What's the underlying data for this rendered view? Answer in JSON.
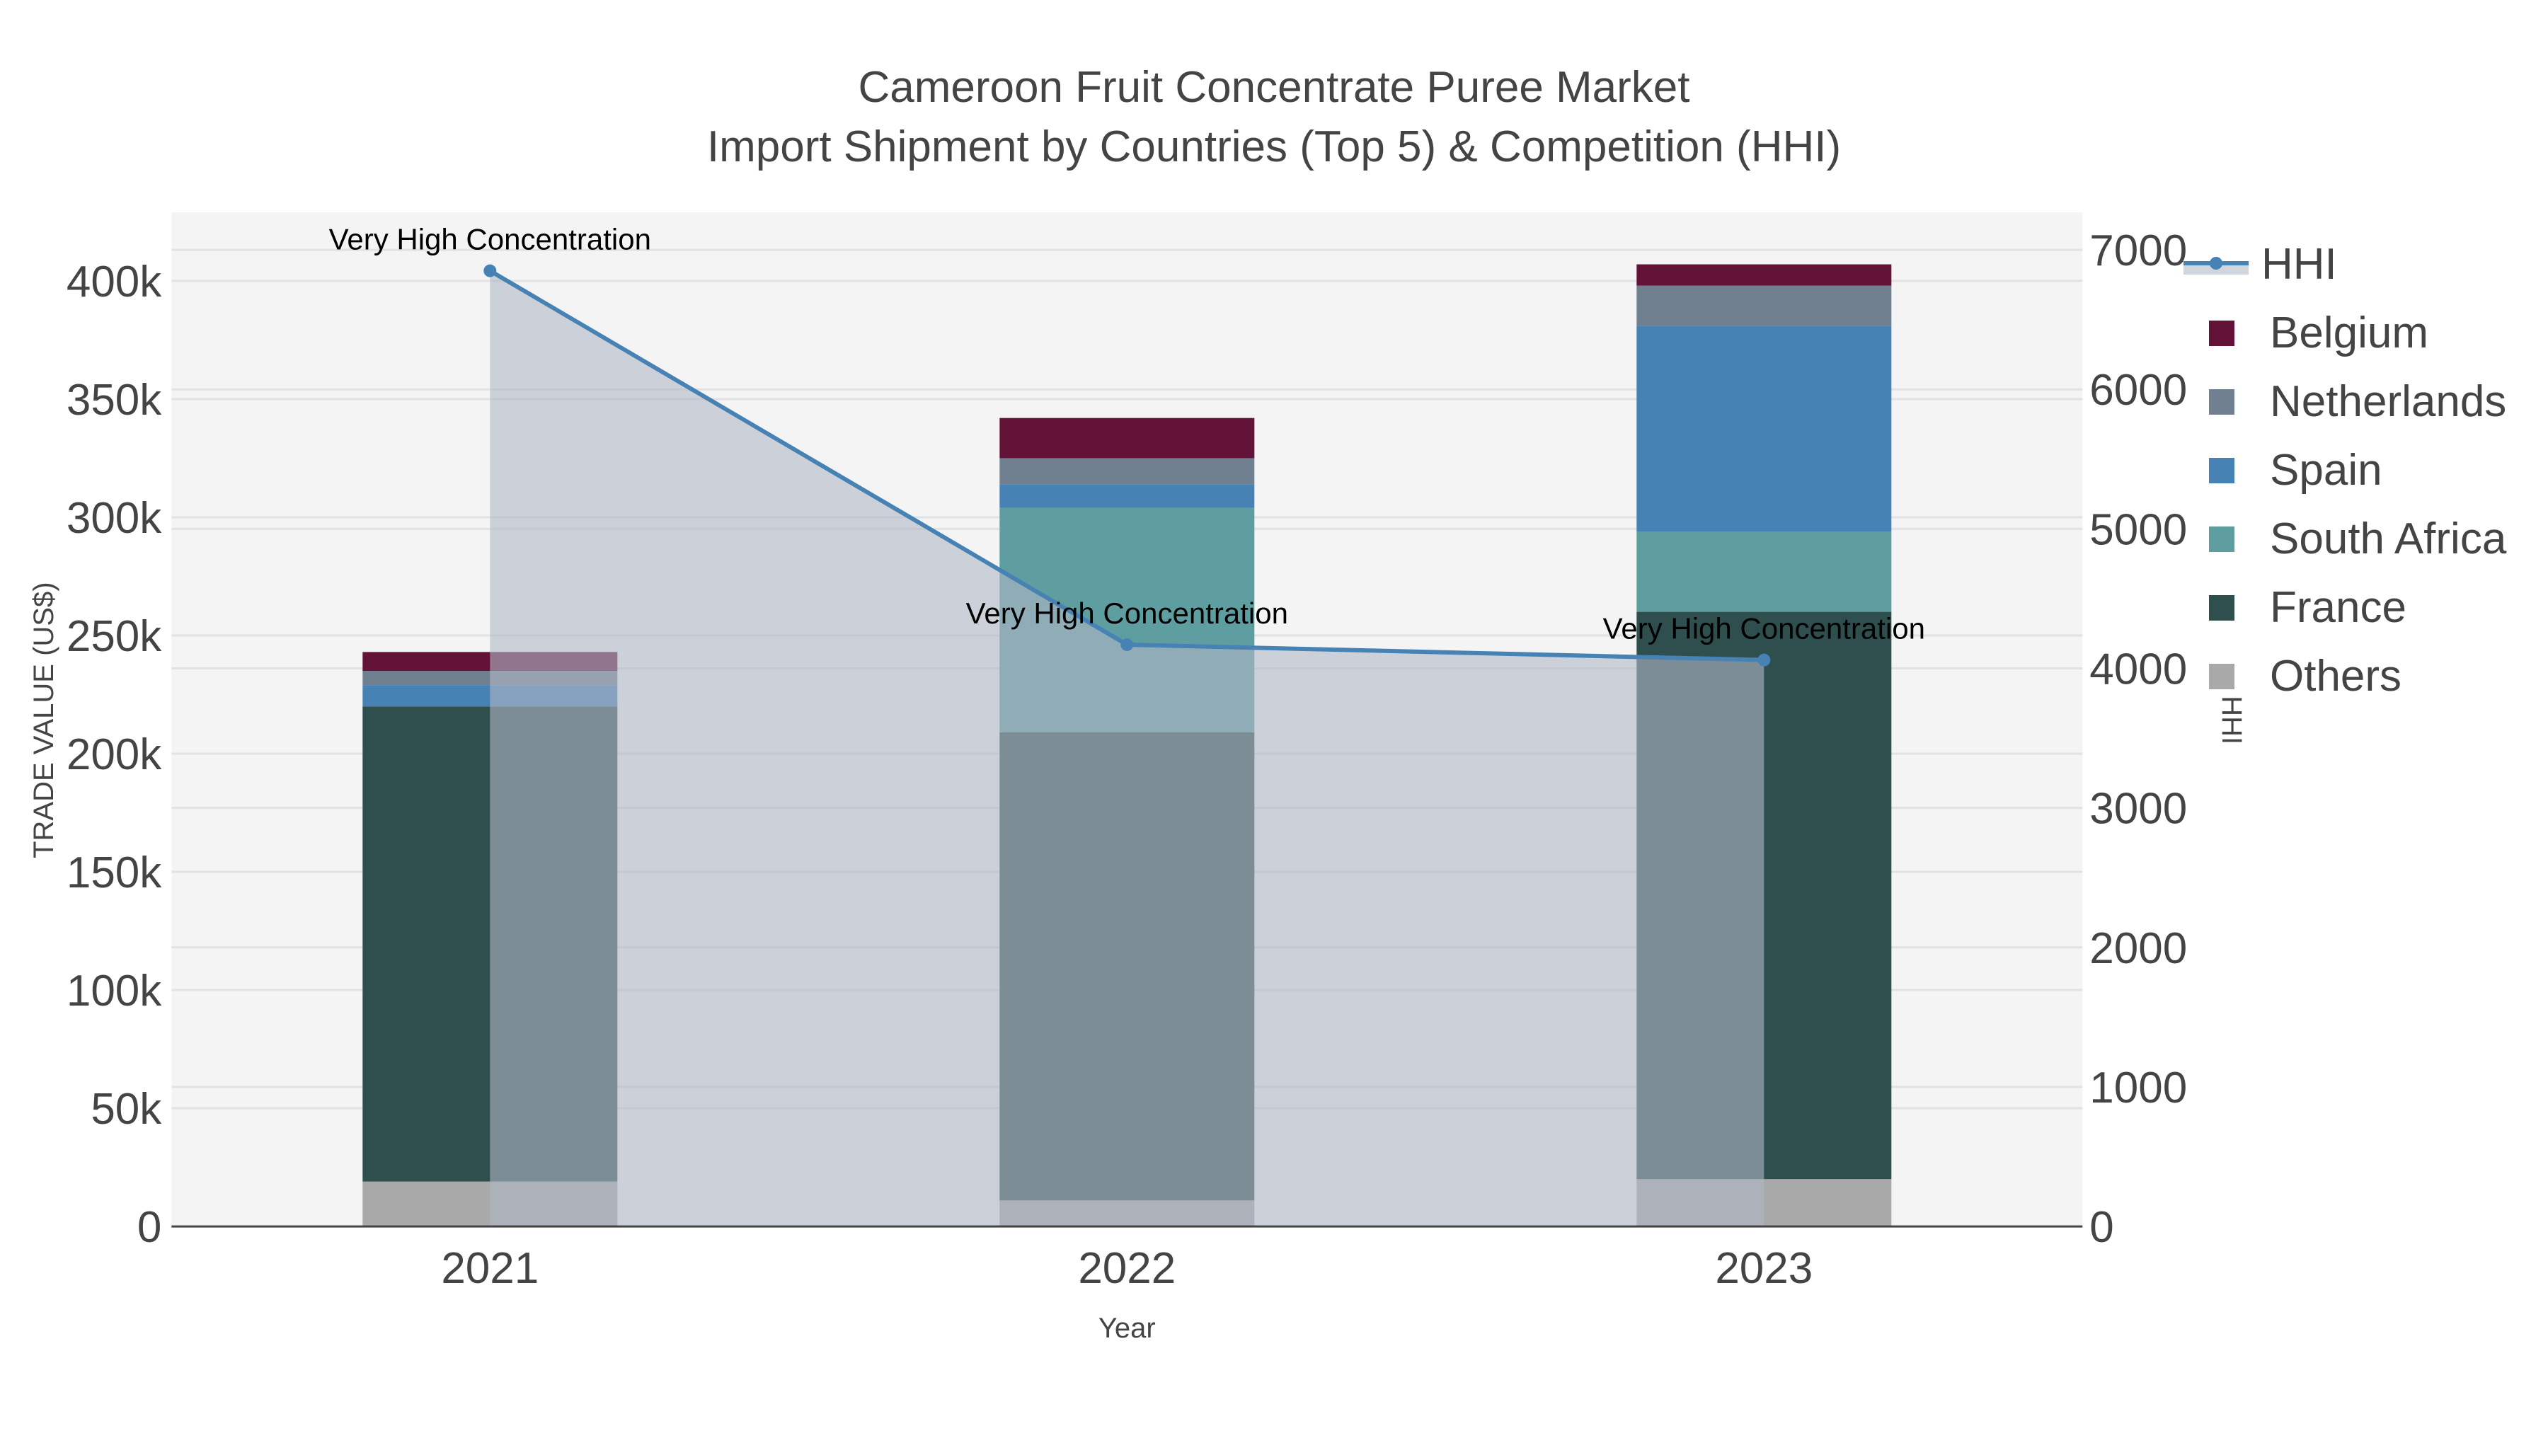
{
  "title": {
    "line1": "Cameroon Fruit Concentrate Puree Market",
    "line2": "Import Shipment by Countries (Top 5) & Competition (HHI)"
  },
  "axes": {
    "y_left_label": "TRADE VALUE (US$)",
    "y_right_label": "HHI",
    "x_label": "Year",
    "y_left_ticks": [
      "0",
      "50k",
      "100k",
      "150k",
      "200k",
      "250k",
      "300k",
      "350k",
      "400k"
    ],
    "y_right_ticks": [
      "0",
      "1000",
      "2000",
      "3000",
      "4000",
      "5000",
      "6000",
      "7000"
    ],
    "x_ticks": [
      "2021",
      "2022",
      "2023"
    ]
  },
  "legend": {
    "items": [
      {
        "label": "HHI",
        "color": "#4682B4",
        "kind": "line"
      },
      {
        "label": "Belgium",
        "color": "#631337",
        "kind": "bar"
      },
      {
        "label": "Netherlands",
        "color": "#708090",
        "kind": "bar"
      },
      {
        "label": "Spain",
        "color": "#4682B4",
        "kind": "bar"
      },
      {
        "label": "South Africa",
        "color": "#5F9EA0",
        "kind": "bar"
      },
      {
        "label": "France",
        "color": "#2F4F4F",
        "kind": "bar"
      },
      {
        "label": "Others",
        "color": "#A9A9A9",
        "kind": "bar"
      }
    ]
  },
  "annotations": [
    "Very High Concentration",
    "Very High Concentration",
    "Very High Concentration"
  ],
  "colors": {
    "plot_bg": "#F4F4F4",
    "grid": "#E2E2E2",
    "hhi_line": "#4682B4",
    "hhi_fill": "rgba(176,184,198,0.6)"
  },
  "chart_data": {
    "type": "bar",
    "title": "Cameroon Fruit Concentrate Puree Market — Import Shipment by Countries (Top 5) & Competition (HHI)",
    "xlabel": "Year",
    "ylabel": "TRADE VALUE (US$)",
    "y2label": "HHI",
    "categories": [
      "2021",
      "2022",
      "2023"
    ],
    "stacked": true,
    "ylim": [
      0,
      428000
    ],
    "y2lim": [
      0,
      7300
    ],
    "grid": true,
    "legend_position": "right",
    "series": [
      {
        "name": "Others",
        "color": "#A9A9A9",
        "values": [
          19000,
          11000,
          20000
        ]
      },
      {
        "name": "France",
        "color": "#2F4F4F",
        "values": [
          201000,
          198000,
          240000
        ]
      },
      {
        "name": "South Africa",
        "color": "#5F9EA0",
        "values": [
          0,
          95000,
          34000
        ]
      },
      {
        "name": "Spain",
        "color": "#4682B4",
        "values": [
          9000,
          10000,
          87000
        ]
      },
      {
        "name": "Netherlands",
        "color": "#708090",
        "values": [
          6000,
          11000,
          17000
        ]
      },
      {
        "name": "Belgium",
        "color": "#631337",
        "values": [
          8000,
          17000,
          9000
        ]
      }
    ],
    "line_series": [
      {
        "name": "HHI",
        "axis": "y2",
        "color": "#4682B4",
        "fill": "tozeroy",
        "values": [
          6850,
          4170,
          4060
        ],
        "annotations": [
          "Very High Concentration",
          "Very High Concentration",
          "Very High Concentration"
        ]
      }
    ]
  }
}
